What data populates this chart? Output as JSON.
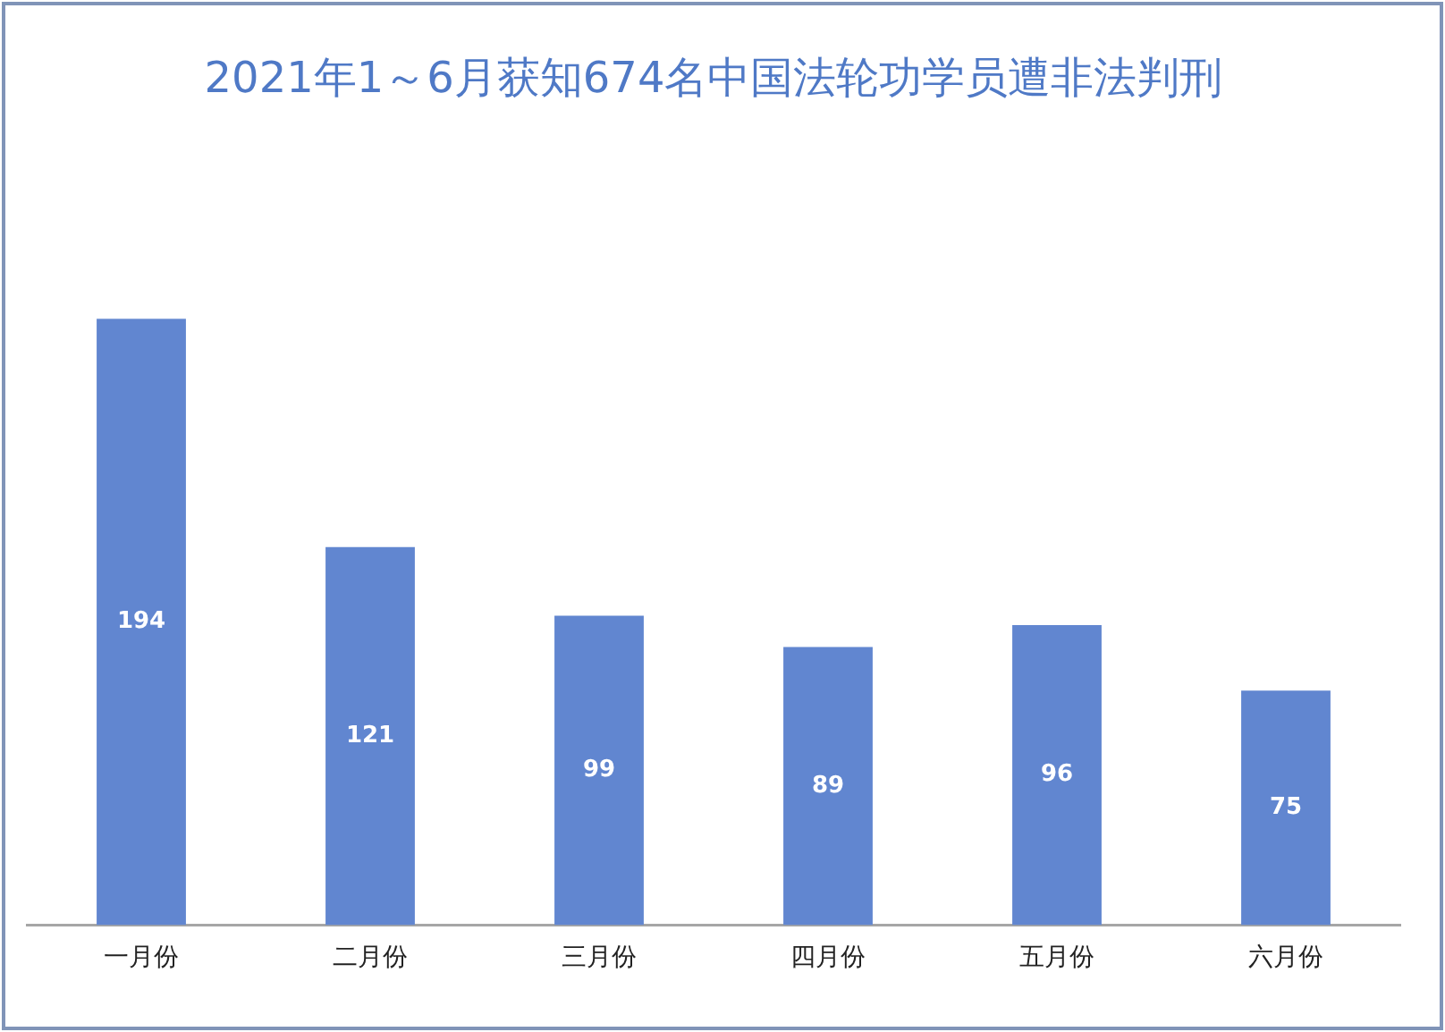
{
  "chart_data": {
    "type": "bar",
    "title": "2021年1～6月获知674名中国法轮功学员遭非法判刑",
    "categories": [
      "一月份",
      "二月份",
      "三月份",
      "四月份",
      "五月份",
      "六月份"
    ],
    "values": [
      194,
      121,
      99,
      89,
      96,
      75
    ],
    "color": "#6186d0",
    "tick_labels": "x",
    "data_labels": true,
    "grid": false,
    "legend": false
  }
}
